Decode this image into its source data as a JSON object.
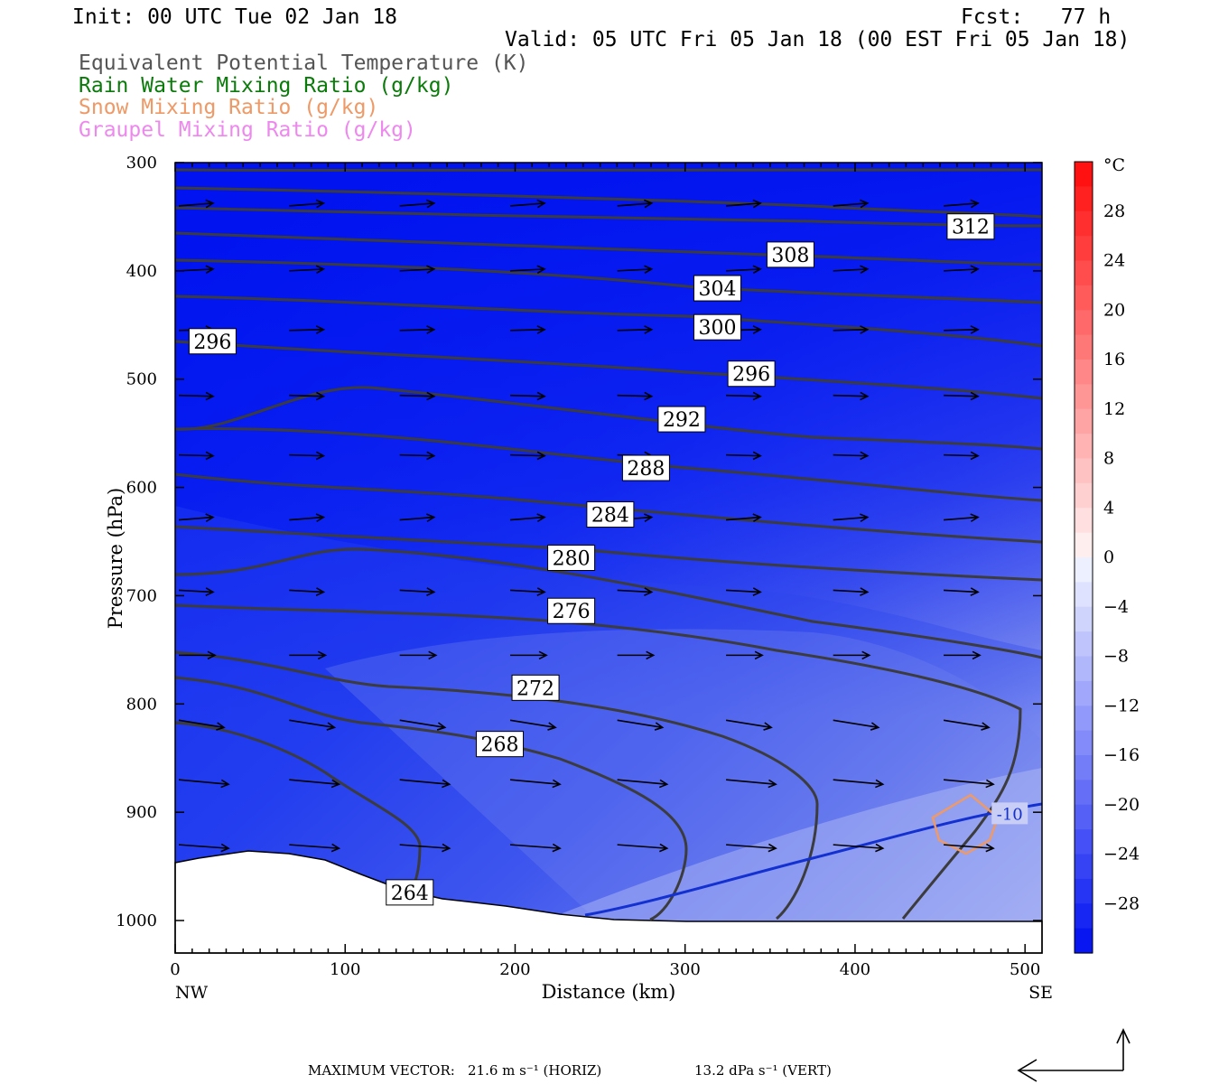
{
  "header": {
    "init": "Init: 00 UTC Tue 02 Jan 18",
    "fcst": "Fcst:   77 h",
    "valid": "Valid: 05 UTC Fri 05 Jan 18 (00 EST Fri 05 Jan 18)"
  },
  "legend": [
    {
      "label": "Equivalent Potential Temperature (K)",
      "color": "#555555"
    },
    {
      "label": "Rain Water Mixing Ratio (g/kg)",
      "color": "#0a7a0a"
    },
    {
      "label": "Snow Mixing Ratio (g/kg)",
      "color": "#ee9966"
    },
    {
      "label": "Graupel Mixing Ratio (g/kg)",
      "color": "#ee88ee"
    }
  ],
  "footer": {
    "max_vector_label": "MAXIMUM VECTOR:",
    "horiz": "21.6 m s⁻¹ (HORIZ)",
    "vert": "13.2 dPa s⁻¹ (VERT)"
  },
  "chart_data": {
    "type": "cross-section",
    "xlabel": "Distance (km)",
    "ylabel": "Pressure (hPa)",
    "x_ticks": [
      0,
      100,
      200,
      300,
      400,
      500
    ],
    "y_ticks": [
      300,
      400,
      500,
      600,
      700,
      800,
      900,
      1000
    ],
    "xlim": [
      0,
      510
    ],
    "ylim": [
      1030,
      300
    ],
    "x_end_labels": {
      "left": "NW",
      "right": "SE"
    },
    "colorbar": {
      "unit": "°C",
      "tick_labels": [
        "28",
        "24",
        "20",
        "16",
        "12",
        "8",
        "4",
        "0",
        "−4",
        "−8",
        "−12",
        "−16",
        "−20",
        "−24",
        "−28"
      ],
      "tick_values": [
        28,
        24,
        20,
        16,
        12,
        8,
        4,
        0,
        -4,
        -8,
        -12,
        -16,
        -20,
        -24,
        -28
      ],
      "min": -32,
      "max": 32
    },
    "theta_e_labels": [
      {
        "text": "312",
        "x": 468,
        "p": 359
      },
      {
        "text": "308",
        "x": 362,
        "p": 385
      },
      {
        "text": "304",
        "x": 319,
        "p": 416
      },
      {
        "text": "300",
        "x": 319,
        "p": 452
      },
      {
        "text": "296",
        "x": 22,
        "p": 465
      },
      {
        "text": "296",
        "x": 339,
        "p": 495
      },
      {
        "text": "292",
        "x": 298,
        "p": 537
      },
      {
        "text": "288",
        "x": 277,
        "p": 582
      },
      {
        "text": "284",
        "x": 256,
        "p": 625
      },
      {
        "text": "280",
        "x": 233,
        "p": 665
      },
      {
        "text": "276",
        "x": 233,
        "p": 714
      },
      {
        "text": "272",
        "x": 212,
        "p": 785
      },
      {
        "text": "268",
        "x": 191,
        "p": 837
      },
      {
        "text": "264",
        "x": 138,
        "p": 974
      }
    ],
    "isotherm_label": {
      "text": "-10",
      "x": 491,
      "p": 901
    }
  }
}
